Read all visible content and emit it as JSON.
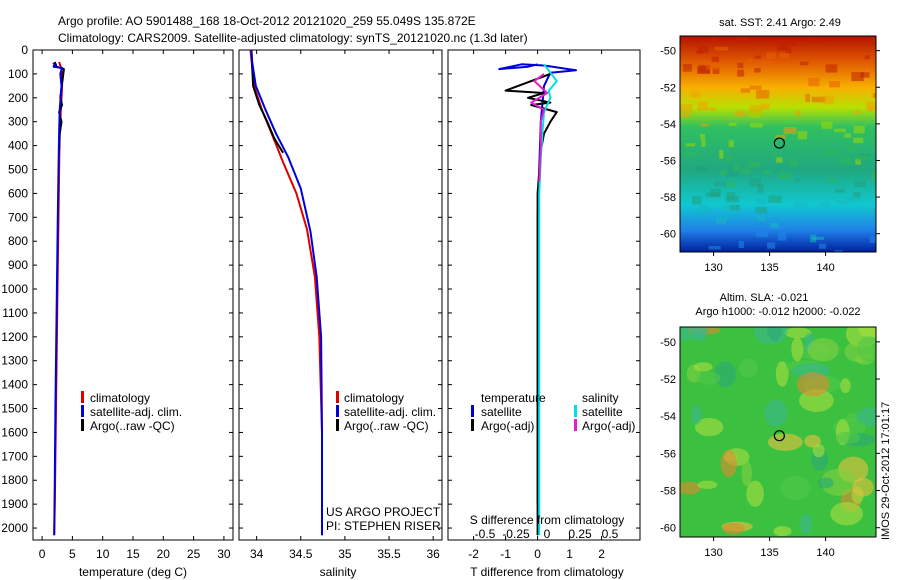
{
  "header": {
    "line1": "Argo profile: AO 5901488_168 18-Oct-2012 20121020_259 55.049S 135.872E",
    "line2": "Climatology: CARS2009. Satellite-adjusted climatology: synTS_20121020.nc (1.3d later)"
  },
  "colors": {
    "climatology": "#dd0000",
    "satellite": "#0000dd",
    "argo": "#000000",
    "sat_salinity": "#00e0e8",
    "argo_adj_salinity": "#e020c8"
  },
  "chart_data": [
    {
      "type": "line",
      "id": "temperature",
      "xlabel": "temperature (deg C)",
      "xlim": [
        -1.5,
        31.5
      ],
      "ylim": [
        2050,
        0
      ],
      "xticks": [
        0,
        5,
        10,
        15,
        20,
        25,
        30
      ],
      "yticks": [
        0,
        100,
        200,
        300,
        400,
        500,
        600,
        700,
        800,
        900,
        1000,
        1100,
        1200,
        1300,
        1400,
        1500,
        1600,
        1700,
        1800,
        1900,
        2000
      ],
      "legend": [
        "climatology",
        "satellite-adj. clim.",
        "Argo(..raw -QC)"
      ],
      "series": [
        {
          "name": "climatology",
          "color_key": "climatology",
          "x": [
            2.8,
            3.2,
            3.3,
            3.1,
            2.9,
            2.8,
            2.7,
            2.6,
            2.5,
            2.4,
            2.3,
            2.2,
            2.1,
            2.0
          ],
          "y": [
            50,
            80,
            150,
            250,
            350,
            500,
            700,
            900,
            1100,
            1300,
            1500,
            1700,
            1900,
            2030
          ]
        },
        {
          "name": "Argo",
          "color_key": "argo",
          "x": [
            2.1,
            2.4,
            3.6,
            3.4,
            3.0,
            3.3,
            2.8,
            3.2,
            2.9,
            2.8
          ],
          "y": [
            50,
            70,
            80,
            120,
            200,
            230,
            260,
            300,
            350,
            420
          ]
        },
        {
          "name": "satellite",
          "color_key": "satellite",
          "x": [
            1.8,
            2.1,
            1.9,
            3.3,
            3.0,
            3.2,
            2.9,
            2.8,
            2.7,
            2.6,
            2.5,
            2.4,
            2.3,
            2.2,
            2.1,
            2.0
          ],
          "y": [
            55,
            60,
            70,
            75,
            100,
            150,
            250,
            350,
            500,
            700,
            900,
            1100,
            1300,
            1500,
            1800,
            2030
          ]
        }
      ]
    },
    {
      "type": "line",
      "id": "salinity",
      "xlabel": "salinity",
      "xlim": [
        33.8,
        36.1
      ],
      "ylim": [
        2050,
        0
      ],
      "xticks": [
        34,
        34.5,
        35,
        35.5,
        36
      ],
      "legend": [
        "climatology",
        "satellite-adj. clim.",
        "Argo(..raw -QC)"
      ],
      "annotation": [
        "US ARGO PROJECT",
        "PI: STEPHEN RISER"
      ],
      "series": [
        {
          "name": "climatology",
          "color_key": "climatology",
          "x": [
            33.93,
            33.97,
            34.06,
            34.17,
            34.3,
            34.45,
            34.57,
            34.66,
            34.71,
            34.74,
            34.74
          ],
          "y": [
            0,
            150,
            250,
            350,
            470,
            600,
            750,
            950,
            1200,
            1600,
            2030
          ]
        },
        {
          "name": "Argo",
          "color_key": "argo",
          "x": [
            33.94,
            33.96,
            34.03,
            34.12,
            34.2,
            34.3
          ],
          "y": [
            0,
            150,
            230,
            300,
            370,
            430
          ]
        },
        {
          "name": "satellite",
          "color_key": "satellite",
          "x": [
            33.94,
            33.95,
            33.99,
            34.1,
            34.22,
            34.36,
            34.5,
            34.61,
            34.68,
            34.73,
            34.74,
            34.74
          ],
          "y": [
            0,
            50,
            150,
            250,
            350,
            450,
            580,
            760,
            950,
            1200,
            1600,
            2030
          ]
        }
      ]
    },
    {
      "type": "line",
      "id": "difference",
      "xlabel": "T difference from climatology",
      "xlabel_top": "S difference from climatology",
      "xlim": [
        -2.8,
        3.2
      ],
      "ylim": [
        2050,
        0
      ],
      "xticks": [
        -2,
        -1,
        0,
        1,
        2
      ],
      "xticks_top": [
        "-0.5",
        "-0.25",
        "0",
        "0.25",
        "0.5"
      ],
      "legend_left_title": "temperature",
      "legend_right_title": "salinity",
      "legend_left": [
        "satellite",
        "Argo(-adj)"
      ],
      "legend_right": [
        "satellite",
        "Argo(-adj)"
      ],
      "series": [
        {
          "name": "T satellite",
          "color_key": "satellite",
          "x": [
            0,
            -0.3,
            -1.2,
            -0.5,
            0.2,
            1.2,
            0.4,
            0.2,
            0.1,
            0.05,
            0,
            0,
            0
          ],
          "y": [
            60,
            70,
            80,
            60,
            65,
            85,
            95,
            150,
            300,
            500,
            700,
            1000,
            1900
          ]
        },
        {
          "name": "T Argo",
          "color_key": "argo",
          "x": [
            0.4,
            -0.2,
            -1.0,
            0.2,
            -0.3,
            0.4,
            -0.2,
            0.6,
            0.4,
            0.2,
            0.1,
            0,
            0,
            0,
            0
          ],
          "y": [
            100,
            130,
            170,
            180,
            200,
            220,
            230,
            260,
            300,
            350,
            420,
            600,
            800,
            1100,
            2030
          ]
        },
        {
          "name": "S satellite",
          "color_key": "sat_salinity",
          "x": [
            0.2,
            0.6,
            0.35,
            0.4,
            0.2,
            0.15,
            0.1,
            0.05,
            0.05
          ],
          "y": [
            60,
            130,
            170,
            200,
            260,
            350,
            450,
            600,
            2030
          ]
        },
        {
          "name": "S Argo(-adj)",
          "color_key": "argo_adj_salinity",
          "x": [
            0.2,
            -0.1,
            0.3,
            -0.2,
            0.2,
            0.1,
            0.1,
            0.05
          ],
          "y": [
            100,
            130,
            180,
            220,
            250,
            300,
            400,
            550
          ]
        }
      ]
    },
    {
      "type": "heatmap",
      "id": "sst_map",
      "title": "sat. SST: 2.41  Argo: 2.49",
      "xticks": [
        130,
        135,
        140
      ],
      "yticks": [
        -50,
        -52,
        -54,
        -56,
        -58,
        -60
      ],
      "xlim": [
        127,
        144.5
      ],
      "ylim": [
        -61,
        -49.2
      ],
      "marker": {
        "lon": 135.872,
        "lat": -55.049
      }
    },
    {
      "type": "heatmap",
      "id": "sla_map",
      "title": "Altim. SLA: -0.021",
      "subtitle": "Argo h1000: -0.012  h2000: -0.022",
      "xticks": [
        130,
        135,
        140
      ],
      "yticks": [
        -50,
        -52,
        -54,
        -56,
        -58,
        -60
      ],
      "xlim": [
        127,
        144.5
      ],
      "ylim": [
        -60.5,
        -49.2
      ],
      "marker": {
        "lon": 135.872,
        "lat": -55.049
      }
    }
  ],
  "side_label": "IMOS 29-Oct-2012 17:01:17"
}
